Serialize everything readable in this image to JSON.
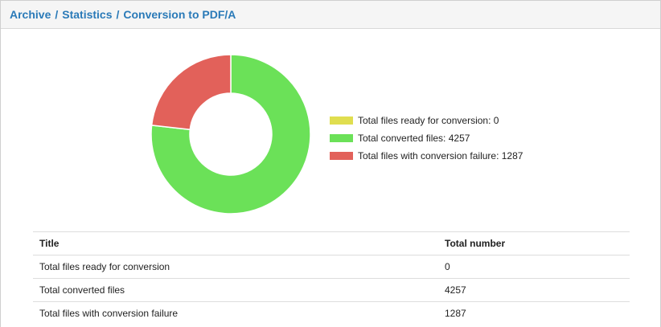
{
  "breadcrumb": {
    "items": [
      "Archive",
      "Statistics",
      "Conversion to PDF/A"
    ],
    "separator": "/"
  },
  "colors": {
    "ready": "#e0de4f",
    "converted": "#6be158",
    "failure": "#e2615a",
    "link": "#2a7ab8"
  },
  "chart_data": {
    "type": "pie",
    "donut": true,
    "legend_position": "right",
    "categories": [
      "Total files ready for conversion",
      "Total converted files",
      "Total files with conversion failure"
    ],
    "values": [
      0,
      4257,
      1287
    ],
    "legend_labels": [
      "Total files ready for conversion: 0",
      "Total converted files: 4257",
      "Total files with conversion failure: 1287"
    ]
  },
  "table": {
    "headers": [
      "Title",
      "Total number"
    ],
    "rows": [
      [
        "Total files ready for conversion",
        "0"
      ],
      [
        "Total converted files",
        "4257"
      ],
      [
        "Total files with conversion failure",
        "1287"
      ]
    ]
  }
}
